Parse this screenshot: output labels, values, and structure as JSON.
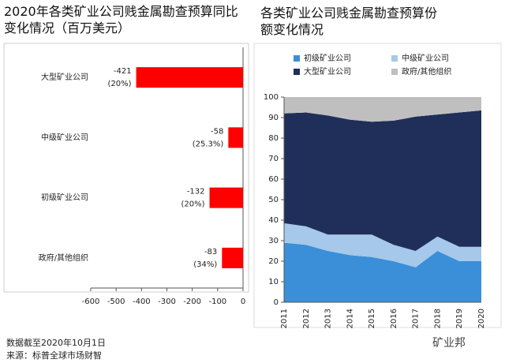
{
  "chart_data": [
    {
      "type": "bar",
      "orientation": "horizontal",
      "title": "2020年各类矿业公司贱金属勘查预算同比变化情况（百万美元）",
      "categories": [
        "大型矿业公司",
        "中级矿业公司",
        "初级矿业公司",
        "政府/其他组织"
      ],
      "values": [
        -421,
        -58,
        -132,
        -83
      ],
      "changes": [
        {
          "value": 20,
          "label": "(20%)"
        },
        {
          "value": 25.3,
          "label": "(25.3%)"
        },
        {
          "value": 20,
          "label": "(20%)"
        },
        {
          "value": 34,
          "label": "(34%)"
        }
      ],
      "color": "#ff0000",
      "xlim": [
        -600,
        0
      ],
      "xticks": [
        -600,
        -500,
        -400,
        -300,
        -200,
        -100,
        0
      ]
    },
    {
      "type": "area",
      "stacked": true,
      "title": "各类矿业公司贱金属勘查预算份额变化情况",
      "categories": [
        "2011",
        "2012",
        "2013",
        "2014",
        "2015",
        "2016",
        "2017",
        "2018",
        "2019",
        "2020"
      ],
      "series": [
        {
          "name": "初级矿业公司",
          "color": "#3a8fd8",
          "values": [
            29,
            28,
            25,
            23,
            22,
            20,
            17,
            25,
            20,
            20
          ]
        },
        {
          "name": "中级矿业公司",
          "color": "#a6c8ea",
          "values": [
            9.5,
            9,
            8,
            10,
            11,
            8,
            8,
            7,
            7,
            7
          ]
        },
        {
          "name": "大型矿业公司",
          "color": "#1f2f5a",
          "values": [
            53.5,
            55.5,
            58,
            56,
            55,
            60.5,
            65.5,
            59.5,
            65.5,
            66.5
          ]
        },
        {
          "name": "政府/其他组织",
          "color": "#bfbfbf",
          "values": [
            8,
            7.5,
            9,
            11,
            12,
            11.5,
            9.5,
            8.5,
            7.5,
            6.5
          ]
        }
      ],
      "ylim": [
        0,
        100
      ],
      "yticks": [
        0,
        10,
        20,
        30,
        40,
        50,
        60,
        70,
        80,
        90,
        100
      ],
      "legend": "top-left"
    }
  ],
  "notes": [
    "数据截至2020年10月1日",
    "来源：标普全球市场财智"
  ],
  "watermark": "矿业邦"
}
